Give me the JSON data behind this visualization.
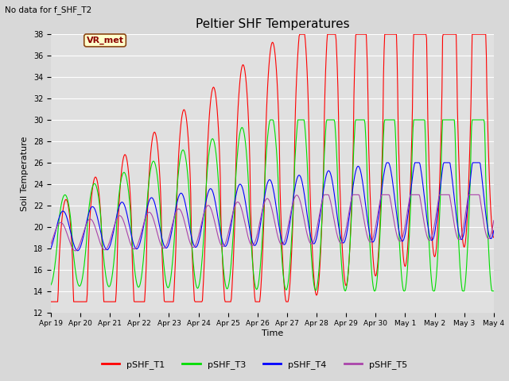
{
  "title": "Peltier SHF Temperatures",
  "ylabel": "Soil Temperature",
  "xlabel": "Time",
  "note": "No data for f_SHF_T2",
  "legend_label": "VR_met",
  "ylim": [
    12,
    38
  ],
  "yticks": [
    12,
    14,
    16,
    18,
    20,
    22,
    24,
    26,
    28,
    30,
    32,
    34,
    36,
    38
  ],
  "series_colors": {
    "pSHF_T1": "#ff0000",
    "pSHF_T3": "#00dd00",
    "pSHF_T4": "#0000ff",
    "pSHF_T5": "#aa44aa"
  },
  "fig_bg_color": "#d8d8d8",
  "plot_bg_color": "#e0e0e0",
  "tick_labels": [
    "Apr 19",
    "Apr 20",
    "Apr 21",
    "Apr 22",
    "Apr 23",
    "Apr 24",
    "Apr 25",
    "Apr 26",
    "Apr 27",
    "Apr 28",
    "Apr 29",
    "Apr 30",
    "May 1",
    "May 2",
    "May 3",
    "May 4"
  ]
}
